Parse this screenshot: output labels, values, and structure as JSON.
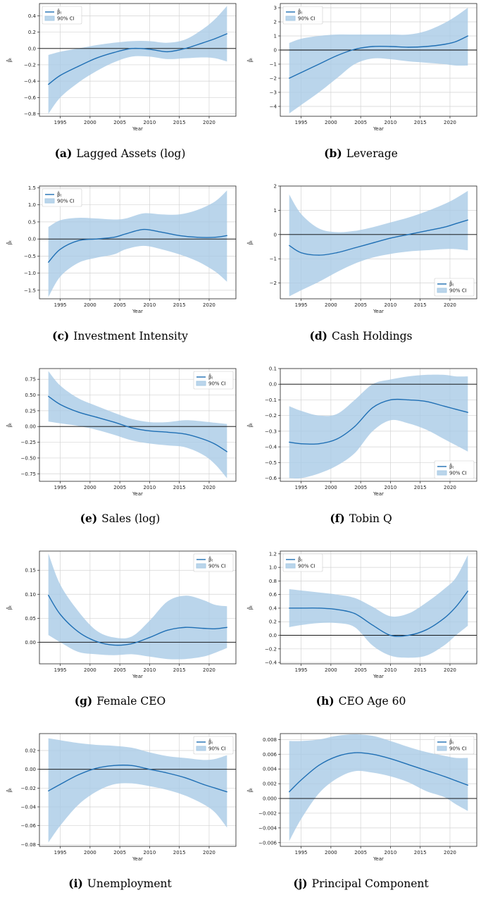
{
  "legend": {
    "line_label": "β̂ₜ",
    "band_label": "90% CI"
  },
  "colors": {
    "line": "#1f6fb4",
    "band": "#a9cbe6",
    "grid": "#d3d3d3",
    "zero": "#000000",
    "axes": "#222222"
  },
  "chart_data": [
    {
      "id": "a",
      "sub_label": "(a)",
      "caption": "Lagged Assets (log)",
      "type": "line",
      "xlabel": "Year",
      "ylabel": "β̂ₜ",
      "grid": true,
      "legend_position": "top-left",
      "xlim": [
        1991.5,
        2024.5
      ],
      "ylim": [
        -0.83,
        0.55
      ],
      "xticks": [
        1995,
        2000,
        2005,
        2010,
        2015,
        2020
      ],
      "yticks": [
        -0.8,
        -0.6,
        -0.4,
        -0.2,
        0.0,
        0.2,
        0.4
      ],
      "ytick_labels": [
        "−0.8",
        "−0.6",
        "−0.4",
        "−0.2",
        "0.0",
        "0.2",
        "0.4"
      ],
      "x": [
        1993,
        1995,
        1998,
        2001,
        2004,
        2007,
        2010,
        2013,
        2016,
        2019,
        2021,
        2023
      ],
      "estimate": [
        -0.44,
        -0.33,
        -0.22,
        -0.12,
        -0.05,
        0.0,
        -0.01,
        -0.04,
        0.0,
        0.07,
        0.12,
        0.18
      ],
      "lower": [
        -0.8,
        -0.6,
        -0.42,
        -0.28,
        -0.17,
        -0.1,
        -0.1,
        -0.13,
        -0.12,
        -0.11,
        -0.12,
        -0.16
      ],
      "upper": [
        -0.08,
        -0.04,
        0.0,
        0.04,
        0.07,
        0.09,
        0.09,
        0.07,
        0.11,
        0.24,
        0.36,
        0.52
      ]
    },
    {
      "id": "b",
      "sub_label": "(b)",
      "caption": "Leverage",
      "type": "line",
      "xlabel": "Year",
      "ylabel": "β̂ₜ",
      "grid": true,
      "legend_position": "top-left",
      "xlim": [
        1991.5,
        2024.5
      ],
      "ylim": [
        -4.7,
        3.3
      ],
      "xticks": [
        1995,
        2000,
        2005,
        2010,
        2015,
        2020
      ],
      "yticks": [
        -4,
        -3,
        -2,
        -1,
        0,
        1,
        2,
        3
      ],
      "ytick_labels": [
        "−4",
        "−3",
        "−2",
        "−1",
        "0",
        "1",
        "2",
        "3"
      ],
      "x": [
        1993,
        1995,
        1998,
        2001,
        2004,
        2007,
        2010,
        2013,
        2016,
        2019,
        2021,
        2023
      ],
      "estimate": [
        -2.0,
        -1.6,
        -1.0,
        -0.4,
        0.05,
        0.25,
        0.25,
        0.2,
        0.25,
        0.4,
        0.6,
        1.0
      ],
      "lower": [
        -4.5,
        -3.9,
        -3.0,
        -2.0,
        -1.0,
        -0.6,
        -0.65,
        -0.8,
        -0.9,
        -1.0,
        -1.1,
        -1.1
      ],
      "upper": [
        0.5,
        0.8,
        1.0,
        1.1,
        1.1,
        1.1,
        1.1,
        1.1,
        1.35,
        1.9,
        2.4,
        3.0
      ]
    },
    {
      "id": "c",
      "sub_label": "(c)",
      "caption": "Investment Intensity",
      "type": "line",
      "xlabel": "Year",
      "ylabel": "β̂ₜ",
      "grid": true,
      "legend_position": "top-left",
      "xlim": [
        1991.5,
        2024.5
      ],
      "ylim": [
        -1.75,
        1.55
      ],
      "xticks": [
        1995,
        2000,
        2005,
        2010,
        2015,
        2020
      ],
      "yticks": [
        -1.5,
        -1.0,
        -0.5,
        0.0,
        0.5,
        1.0,
        1.5
      ],
      "ytick_labels": [
        "−1.5",
        "−1.0",
        "−0.5",
        "0.0",
        "0.5",
        "1.0",
        "1.5"
      ],
      "x": [
        1993,
        1995,
        1998,
        2001,
        2004,
        2006,
        2009,
        2012,
        2015,
        2018,
        2021,
        2023
      ],
      "estimate": [
        -0.68,
        -0.3,
        -0.05,
        0.0,
        0.05,
        0.15,
        0.28,
        0.2,
        0.1,
        0.05,
        0.05,
        0.1
      ],
      "lower": [
        -1.7,
        -1.1,
        -0.7,
        -0.55,
        -0.45,
        -0.3,
        -0.2,
        -0.3,
        -0.45,
        -0.65,
        -0.95,
        -1.25
      ],
      "upper": [
        0.35,
        0.55,
        0.62,
        0.6,
        0.57,
        0.6,
        0.75,
        0.72,
        0.72,
        0.85,
        1.1,
        1.42
      ]
    },
    {
      "id": "d",
      "sub_label": "(d)",
      "caption": "Cash Holdings",
      "type": "line",
      "xlabel": "Year",
      "ylabel": "β̂ₜ",
      "grid": true,
      "legend_position": "bottom-right",
      "xlim": [
        1991.5,
        2024.5
      ],
      "ylim": [
        -2.65,
        2.0
      ],
      "xticks": [
        1995,
        2000,
        2005,
        2010,
        2015,
        2020
      ],
      "yticks": [
        -2,
        -1,
        0,
        1,
        2
      ],
      "ytick_labels": [
        "−2",
        "−1",
        "0",
        "1",
        "2"
      ],
      "x": [
        1993,
        1995,
        1998,
        2001,
        2004,
        2007,
        2010,
        2013,
        2016,
        2019,
        2021,
        2023
      ],
      "estimate": [
        -0.45,
        -0.75,
        -0.85,
        -0.75,
        -0.55,
        -0.35,
        -0.15,
        0.0,
        0.15,
        0.3,
        0.45,
        0.6
      ],
      "lower": [
        -2.55,
        -2.3,
        -1.95,
        -1.55,
        -1.2,
        -0.95,
        -0.8,
        -0.7,
        -0.65,
        -0.6,
        -0.6,
        -0.65
      ],
      "upper": [
        1.65,
        0.85,
        0.25,
        0.1,
        0.15,
        0.3,
        0.5,
        0.7,
        0.95,
        1.25,
        1.5,
        1.8
      ]
    },
    {
      "id": "e",
      "sub_label": "(e)",
      "caption": "Sales (log)",
      "type": "line",
      "xlabel": "Year",
      "ylabel": "β̂ₜ",
      "grid": true,
      "legend_position": "top-right",
      "xlim": [
        1991.5,
        2024.5
      ],
      "ylim": [
        -0.87,
        0.92
      ],
      "xticks": [
        1995,
        2000,
        2005,
        2010,
        2015,
        2020
      ],
      "yticks": [
        -0.75,
        -0.5,
        -0.25,
        0.0,
        0.25,
        0.5,
        0.75
      ],
      "ytick_labels": [
        "−0.75",
        "−0.50",
        "−0.25",
        "0.00",
        "0.25",
        "0.50",
        "0.75"
      ],
      "x": [
        1993,
        1995,
        1998,
        2001,
        2004,
        2007,
        2010,
        2013,
        2016,
        2019,
        2021,
        2023
      ],
      "estimate": [
        0.48,
        0.35,
        0.23,
        0.15,
        0.07,
        -0.02,
        -0.07,
        -0.09,
        -0.12,
        -0.2,
        -0.28,
        -0.4
      ],
      "lower": [
        0.08,
        0.05,
        0.01,
        -0.05,
        -0.13,
        -0.22,
        -0.27,
        -0.3,
        -0.33,
        -0.45,
        -0.6,
        -0.82
      ],
      "upper": [
        0.88,
        0.65,
        0.45,
        0.33,
        0.22,
        0.12,
        0.07,
        0.07,
        0.1,
        0.08,
        0.06,
        0.04
      ]
    },
    {
      "id": "f",
      "sub_label": "(f)",
      "caption": "Tobin Q",
      "type": "line",
      "xlabel": "Year",
      "ylabel": "β̂ₜ",
      "grid": true,
      "legend_position": "bottom-right",
      "xlim": [
        1991.5,
        2024.5
      ],
      "ylim": [
        -0.62,
        0.1
      ],
      "xticks": [
        1995,
        2000,
        2005,
        2010,
        2015,
        2020
      ],
      "yticks": [
        -0.6,
        -0.5,
        -0.4,
        -0.3,
        -0.2,
        -0.1,
        0.0,
        0.1
      ],
      "ytick_labels": [
        "−0.6",
        "−0.5",
        "−0.4",
        "−0.3",
        "−0.2",
        "−0.1",
        "0.0",
        "0.1"
      ],
      "x": [
        1993,
        1995,
        1998,
        2001,
        2004,
        2007,
        2010,
        2013,
        2016,
        2019,
        2021,
        2023
      ],
      "estimate": [
        -0.37,
        -0.38,
        -0.38,
        -0.35,
        -0.27,
        -0.15,
        -0.1,
        -0.1,
        -0.11,
        -0.14,
        -0.16,
        -0.18
      ],
      "lower": [
        -0.6,
        -0.6,
        -0.57,
        -0.52,
        -0.44,
        -0.3,
        -0.23,
        -0.25,
        -0.29,
        -0.35,
        -0.39,
        -0.43
      ],
      "upper": [
        -0.14,
        -0.17,
        -0.2,
        -0.19,
        -0.1,
        0.0,
        0.03,
        0.05,
        0.06,
        0.06,
        0.05,
        0.05
      ]
    },
    {
      "id": "g",
      "sub_label": "(g)",
      "caption": "Female CEO",
      "type": "line",
      "xlabel": "Year",
      "ylabel": "β̂ₜ",
      "grid": true,
      "legend_position": "top-right",
      "xlim": [
        1991.5,
        2024.5
      ],
      "ylim": [
        -0.045,
        0.19
      ],
      "xticks": [
        1995,
        2000,
        2005,
        2010,
        2015,
        2020
      ],
      "yticks": [
        0.0,
        0.05,
        0.1,
        0.15
      ],
      "ytick_labels": [
        "0.00",
        "0.05",
        "0.10",
        "0.15"
      ],
      "x": [
        1993,
        1995,
        1998,
        2001,
        2004,
        2007,
        2010,
        2013,
        2016,
        2019,
        2021,
        2023
      ],
      "estimate": [
        0.098,
        0.058,
        0.022,
        0.002,
        -0.006,
        -0.003,
        0.01,
        0.025,
        0.031,
        0.029,
        0.028,
        0.031
      ],
      "lower": [
        0.015,
        0.0,
        -0.02,
        -0.025,
        -0.027,
        -0.025,
        -0.03,
        -0.035,
        -0.035,
        -0.03,
        -0.022,
        -0.012
      ],
      "upper": [
        0.185,
        0.12,
        0.065,
        0.025,
        0.01,
        0.012,
        0.045,
        0.085,
        0.097,
        0.088,
        0.078,
        0.075
      ]
    },
    {
      "id": "h",
      "sub_label": "(h)",
      "caption": "CEO Age 60",
      "type": "line",
      "xlabel": "Year",
      "ylabel": "β̂ₜ",
      "grid": true,
      "legend_position": "top-left",
      "xlim": [
        1991.5,
        2024.5
      ],
      "ylim": [
        -0.42,
        1.24
      ],
      "xticks": [
        1995,
        2000,
        2005,
        2010,
        2015,
        2020
      ],
      "yticks": [
        -0.4,
        -0.2,
        0.0,
        0.2,
        0.4,
        0.6,
        0.8,
        1.0,
        1.2
      ],
      "ytick_labels": [
        "−0.4",
        "−0.2",
        "0.0",
        "0.2",
        "0.4",
        "0.6",
        "0.8",
        "1.0",
        "1.2"
      ],
      "x": [
        1993,
        1995,
        1998,
        2001,
        2004,
        2007,
        2010,
        2013,
        2016,
        2019,
        2021,
        2023
      ],
      "estimate": [
        0.4,
        0.4,
        0.4,
        0.38,
        0.32,
        0.15,
        0.0,
        0.0,
        0.08,
        0.25,
        0.42,
        0.65
      ],
      "lower": [
        0.12,
        0.15,
        0.18,
        0.18,
        0.12,
        -0.15,
        -0.3,
        -0.33,
        -0.3,
        -0.15,
        0.0,
        0.14
      ],
      "upper": [
        0.68,
        0.66,
        0.63,
        0.6,
        0.55,
        0.42,
        0.28,
        0.32,
        0.48,
        0.68,
        0.85,
        1.18
      ]
    },
    {
      "id": "i",
      "sub_label": "(i)",
      "caption": "Unemployment",
      "type": "line",
      "xlabel": "Year",
      "ylabel": "β̂ₜ",
      "grid": true,
      "legend_position": "top-right",
      "xlim": [
        1991.5,
        2024.5
      ],
      "ylim": [
        -0.082,
        0.038
      ],
      "xticks": [
        1995,
        2000,
        2005,
        2010,
        2015,
        2020
      ],
      "yticks": [
        -0.08,
        -0.06,
        -0.04,
        -0.02,
        0.0,
        0.02
      ],
      "ytick_labels": [
        "−0.08",
        "−0.06",
        "−0.04",
        "−0.02",
        "0.00",
        "0.02"
      ],
      "x": [
        1993,
        1995,
        1998,
        2001,
        2004,
        2007,
        2010,
        2013,
        2016,
        2019,
        2021,
        2023
      ],
      "estimate": [
        -0.023,
        -0.016,
        -0.006,
        0.001,
        0.004,
        0.004,
        0.0,
        -0.004,
        -0.009,
        -0.016,
        -0.02,
        -0.024
      ],
      "lower": [
        -0.078,
        -0.06,
        -0.038,
        -0.024,
        -0.016,
        -0.015,
        -0.018,
        -0.022,
        -0.028,
        -0.037,
        -0.046,
        -0.062
      ],
      "upper": [
        0.033,
        0.031,
        0.028,
        0.026,
        0.025,
        0.023,
        0.018,
        0.014,
        0.012,
        0.01,
        0.011,
        0.015
      ]
    },
    {
      "id": "j",
      "sub_label": "(j)",
      "caption": "Principal Component",
      "type": "line",
      "xlabel": "Year",
      "ylabel": "β̂ₜ",
      "grid": true,
      "legend_position": "top-right",
      "xlim": [
        1991.5,
        2024.5
      ],
      "ylim": [
        -0.0065,
        0.0088
      ],
      "xticks": [
        1995,
        2000,
        2005,
        2010,
        2015,
        2020
      ],
      "yticks": [
        -0.006,
        -0.004,
        -0.002,
        0.0,
        0.002,
        0.004,
        0.006,
        0.008
      ],
      "ytick_labels": [
        "−0.006",
        "−0.004",
        "−0.002",
        "0.000",
        "0.002",
        "0.004",
        "0.006",
        "0.008"
      ],
      "x": [
        1993,
        1995,
        1998,
        2001,
        2004,
        2007,
        2010,
        2013,
        2016,
        2019,
        2021,
        2023
      ],
      "estimate": [
        0.0009,
        0.0025,
        0.0045,
        0.0057,
        0.0062,
        0.006,
        0.0054,
        0.0046,
        0.0038,
        0.003,
        0.0024,
        0.0018
      ],
      "lower": [
        -0.0058,
        -0.0028,
        0.0007,
        0.0027,
        0.0037,
        0.0035,
        0.003,
        0.0022,
        0.001,
        0.0002,
        -0.0008,
        -0.0017
      ],
      "upper": [
        0.0078,
        0.0078,
        0.008,
        0.0085,
        0.0087,
        0.0085,
        0.0078,
        0.007,
        0.0063,
        0.0058,
        0.0055,
        0.0055
      ]
    }
  ]
}
